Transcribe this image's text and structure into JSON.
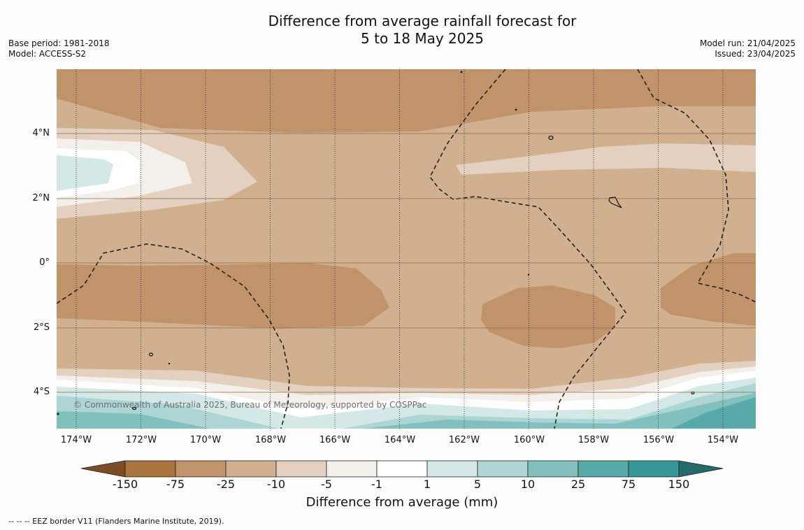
{
  "title_line1": "Difference from average rainfall forecast for",
  "title_line2": "5 to 18 May 2025",
  "left_meta": {
    "base_period": "Base period: 1981-2018",
    "model": "Model: ACCESS-S2"
  },
  "right_meta": {
    "model_run": "Model run: 21/04/2025",
    "issued": "Issued: 23/04/2025"
  },
  "copyright": "© Commonwealth of Australia 2025, Bureau of Meteorology, supported by COSPPac",
  "y_ticks": [
    "4°N",
    "2°N",
    "0°",
    "2°S",
    "4°S"
  ],
  "x_ticks": [
    "174°W",
    "172°W",
    "170°W",
    "168°W",
    "166°W",
    "164°W",
    "162°W",
    "160°W",
    "158°W",
    "156°W",
    "154°W"
  ],
  "colorbar": {
    "ticks": [
      "-150",
      "-75",
      "-25",
      "-10",
      "-5",
      "-1",
      "1",
      "5",
      "10",
      "25",
      "75",
      "150"
    ],
    "colors": [
      "#7c4d22",
      "#a8733d",
      "#c0936a",
      "#d1b08f",
      "#e3d0bf",
      "#f3efea",
      "#ffffff",
      "#d4e9e7",
      "#acd5d4",
      "#82c0be",
      "#58aaa9",
      "#349896",
      "#226b6a"
    ],
    "label": "Difference from average (mm)"
  },
  "footnote": "--  --  -- EEZ border V11 (Flanders Marine Institute, 2019)."
}
